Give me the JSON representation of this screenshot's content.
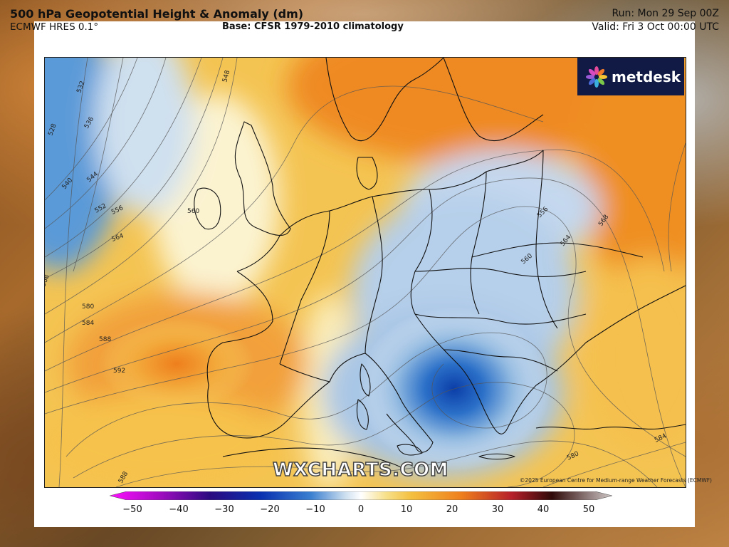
{
  "header": {
    "title": "500 hPa Geopotential Height & Anomaly (dm)",
    "model": "ECMWF HRES 0.1°",
    "base": "Base: CFSR 1979-2010 climatology",
    "run": "Run: Mon 29 Sep 00Z",
    "valid": "Valid: Fri 3 Oct 00:00 UTC"
  },
  "logo": {
    "text": "metdesk",
    "icon": "metdesk-flower-icon"
  },
  "watermark": "WXCHARTS.COM",
  "copyright": "©2025 European Centre for Medium-range Weather Forecasts (ECMWF)",
  "contour_labels": [
    "532",
    "528",
    "536",
    "540",
    "544",
    "548",
    "552",
    "556",
    "560",
    "564",
    "568",
    "580",
    "584",
    "588",
    "592",
    "556",
    "560",
    "564",
    "568",
    "580",
    "584",
    "588",
    "548",
    "536"
  ],
  "colorbar": {
    "ticks": [
      "−50",
      "−40",
      "−30",
      "−20",
      "−10",
      "0",
      "10",
      "20",
      "30",
      "40",
      "50"
    ],
    "colors": [
      "#f0f",
      "#9a0fb4",
      "#2b0a70",
      "#0a2ea8",
      "#3a7fd0",
      "#eef2f6",
      "#f5d060",
      "#ee7f1c",
      "#b6202a",
      "#2a0a0a",
      "#c8c0c0"
    ]
  }
}
